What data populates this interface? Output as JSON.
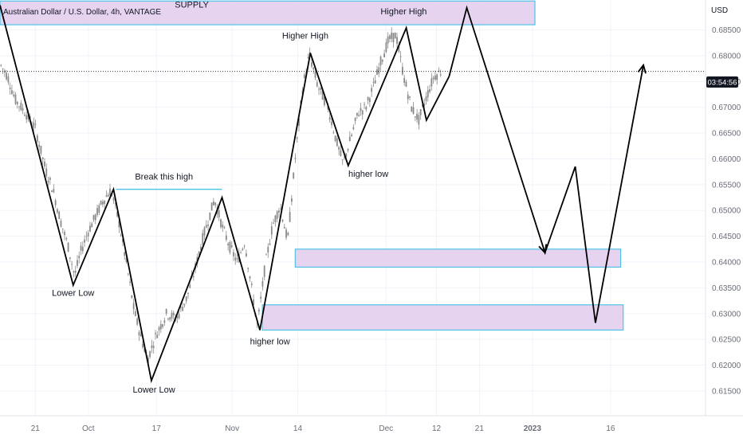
{
  "header": {
    "symbol_title": "Australian Dollar / U.S. Dollar, 4h, VANTAGE",
    "currency": "USD",
    "price_tag": "03:54:56"
  },
  "chart_data": {
    "type": "candlestick",
    "title": "Australian Dollar / U.S. Dollar, 4h, VANTAGE",
    "ylabel": "USD",
    "ylim": [
      0.6102,
      0.6908
    ],
    "y_ticks": [
      "0.68500",
      "0.68000",
      "0.67500",
      "0.67000",
      "0.66500",
      "0.66000",
      "0.65500",
      "0.65000",
      "0.64500",
      "0.64000",
      "0.63500",
      "0.63000",
      "0.62500",
      "0.62000",
      "0.61500"
    ],
    "x_ticks": [
      {
        "label": "21",
        "t": 7
      },
      {
        "label": "Oct",
        "t": 17.5
      },
      {
        "label": "17",
        "t": 31
      },
      {
        "label": "Nov",
        "t": 46
      },
      {
        "label": "14",
        "t": 59
      },
      {
        "label": "Dec",
        "t": 76.5
      },
      {
        "label": "12",
        "t": 86.5
      },
      {
        "label": "21",
        "t": 95
      },
      {
        "label": "2023",
        "t": 105.5,
        "bold": true
      },
      {
        "label": "16",
        "t": 121
      }
    ],
    "price_path": [
      [
        0,
        0.6784
      ],
      [
        1.5,
        0.676
      ],
      [
        3,
        0.6715
      ],
      [
        5,
        0.669
      ],
      [
        7,
        0.666
      ],
      [
        9,
        0.658
      ],
      [
        10.5,
        0.654
      ],
      [
        12,
        0.648
      ],
      [
        13.5,
        0.643
      ],
      [
        14.8,
        0.6373
      ],
      [
        16,
        0.642
      ],
      [
        17.5,
        0.646
      ],
      [
        19,
        0.649
      ],
      [
        20.5,
        0.652
      ],
      [
        22,
        0.654
      ],
      [
        23.5,
        0.648
      ],
      [
        25,
        0.64
      ],
      [
        26.5,
        0.631
      ],
      [
        28,
        0.625
      ],
      [
        29.3,
        0.6213
      ],
      [
        31,
        0.626
      ],
      [
        33,
        0.63
      ],
      [
        35,
        0.629
      ],
      [
        37,
        0.633
      ],
      [
        38.5,
        0.638
      ],
      [
        40,
        0.644
      ],
      [
        42.5,
        0.6522
      ],
      [
        44,
        0.647
      ],
      [
        45.5,
        0.643
      ],
      [
        47,
        0.64
      ],
      [
        48.5,
        0.644
      ],
      [
        50,
        0.634
      ],
      [
        51,
        0.6275
      ],
      [
        52.5,
        0.639
      ],
      [
        54,
        0.647
      ],
      [
        55.5,
        0.651
      ],
      [
        57,
        0.644
      ],
      [
        58.5,
        0.66
      ],
      [
        60,
        0.674
      ],
      [
        61.3,
        0.6803
      ],
      [
        63,
        0.674
      ],
      [
        65,
        0.67
      ],
      [
        66.5,
        0.664
      ],
      [
        68,
        0.659
      ],
      [
        69.5,
        0.664
      ],
      [
        71,
        0.669
      ],
      [
        72.5,
        0.67
      ],
      [
        74,
        0.674
      ],
      [
        75.5,
        0.679
      ],
      [
        77,
        0.683
      ],
      [
        78.5,
        0.684
      ],
      [
        80,
        0.676
      ],
      [
        81.5,
        0.67
      ],
      [
        83,
        0.6675
      ],
      [
        84.5,
        0.672
      ],
      [
        86,
        0.676
      ],
      [
        87.5,
        0.677
      ]
    ],
    "structure_line": [
      {
        "t": 0,
        "p": 0.6898
      },
      {
        "t": 14.5,
        "p": 0.6355
      },
      {
        "t": 22.5,
        "p": 0.6541
      },
      {
        "t": 30,
        "p": 0.617
      },
      {
        "t": 44,
        "p": 0.6525
      },
      {
        "t": 51.5,
        "p": 0.6268
      },
      {
        "t": 61.5,
        "p": 0.6805
      },
      {
        "t": 69,
        "p": 0.6587
      },
      {
        "t": 80.5,
        "p": 0.6854
      },
      {
        "t": 84.5,
        "p": 0.6675
      },
      {
        "t": 89,
        "p": 0.676
      }
    ],
    "projection_line": [
      {
        "t": 89,
        "p": 0.676
      },
      {
        "t": 92.5,
        "p": 0.6893
      },
      {
        "t": 108,
        "p": 0.6418
      },
      {
        "t": 114,
        "p": 0.6585
      },
      {
        "t": 118,
        "p": 0.6282
      },
      {
        "t": 127.5,
        "p": 0.6782
      }
    ],
    "current_price": 0.67695,
    "zones": [
      {
        "name": "supply",
        "label": "SUPPLY",
        "t0": 0,
        "t1": 106,
        "p_top": 0.6906,
        "p_bottom": 0.686
      },
      {
        "name": "demand-upper",
        "label": "",
        "t0": 58.5,
        "t1": 123,
        "p_top": 0.6425,
        "p_bottom": 0.639
      },
      {
        "name": "demand-lower",
        "label": "",
        "t0": 52,
        "t1": 123.5,
        "p_top": 0.6317,
        "p_bottom": 0.6268
      }
    ],
    "resistance_line": {
      "t0": 23,
      "t1": 44,
      "p": 0.6541
    },
    "annotations": [
      {
        "text": "SUPPLY",
        "t": 38,
        "p": 0.6893
      },
      {
        "text": "Higher High",
        "t": 80,
        "p": 0.688
      },
      {
        "text": "Higher High",
        "t": 60.5,
        "p": 0.6833
      },
      {
        "text": "Break this high",
        "t": 32.5,
        "p": 0.656
      },
      {
        "text": "higher low",
        "t": 73,
        "p": 0.6565
      },
      {
        "text": "Lower Low",
        "t": 14.5,
        "p": 0.6334
      },
      {
        "text": "higher low",
        "t": 53.5,
        "p": 0.624
      },
      {
        "text": "Lower Low",
        "t": 30.5,
        "p": 0.6147
      }
    ],
    "colors": {
      "candle": "#8a8a8a",
      "zone_fill": "#e5d3f0",
      "zone_border": "#4fc3e6",
      "line": "#000000",
      "price_tag_bg": "#131722"
    }
  }
}
